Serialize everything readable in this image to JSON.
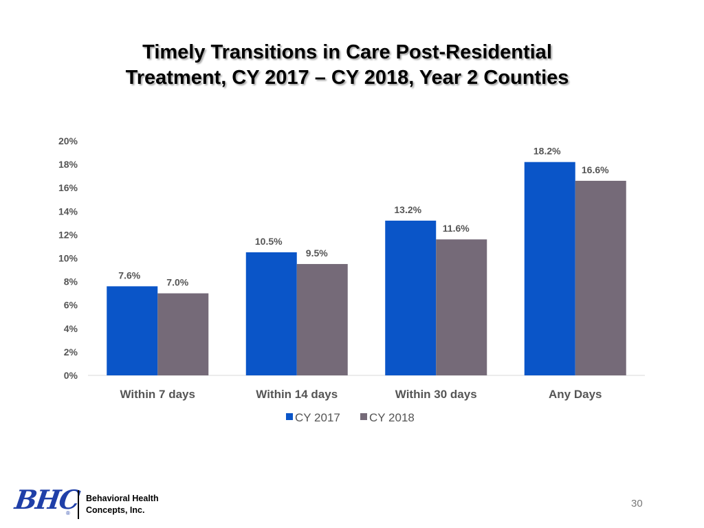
{
  "slide": {
    "title_line1": "Timely Transitions in Care Post-Residential",
    "title_line2": "Treatment, CY 2017 – CY 2018, Year 2 Counties",
    "page_number": "30"
  },
  "footer": {
    "logo_text": "BHC",
    "logo_mark": "®",
    "company_line1": "Behavioral Health",
    "company_line2": "Concepts, Inc."
  },
  "chart_data": {
    "type": "bar",
    "categories": [
      "Within 7 days",
      "Within 14 days",
      "Within 30 days",
      "Any Days"
    ],
    "series": [
      {
        "name": "CY 2017",
        "values": [
          7.6,
          10.5,
          13.2,
          18.2
        ],
        "labels": [
          "7.6%",
          "10.5%",
          "13.2%",
          "18.2%"
        ],
        "color": "#0a55c8"
      },
      {
        "name": "CY 2018",
        "values": [
          7.0,
          9.5,
          11.6,
          16.6
        ],
        "labels": [
          "7.0%",
          "9.5%",
          "11.6%",
          "16.6%"
        ],
        "color": "#756a78"
      }
    ],
    "yticks": [
      "0%",
      "2%",
      "4%",
      "6%",
      "8%",
      "10%",
      "12%",
      "14%",
      "16%",
      "18%",
      "20%"
    ],
    "ylim": [
      0,
      20
    ],
    "grid": false,
    "legend_position": "bottom"
  }
}
